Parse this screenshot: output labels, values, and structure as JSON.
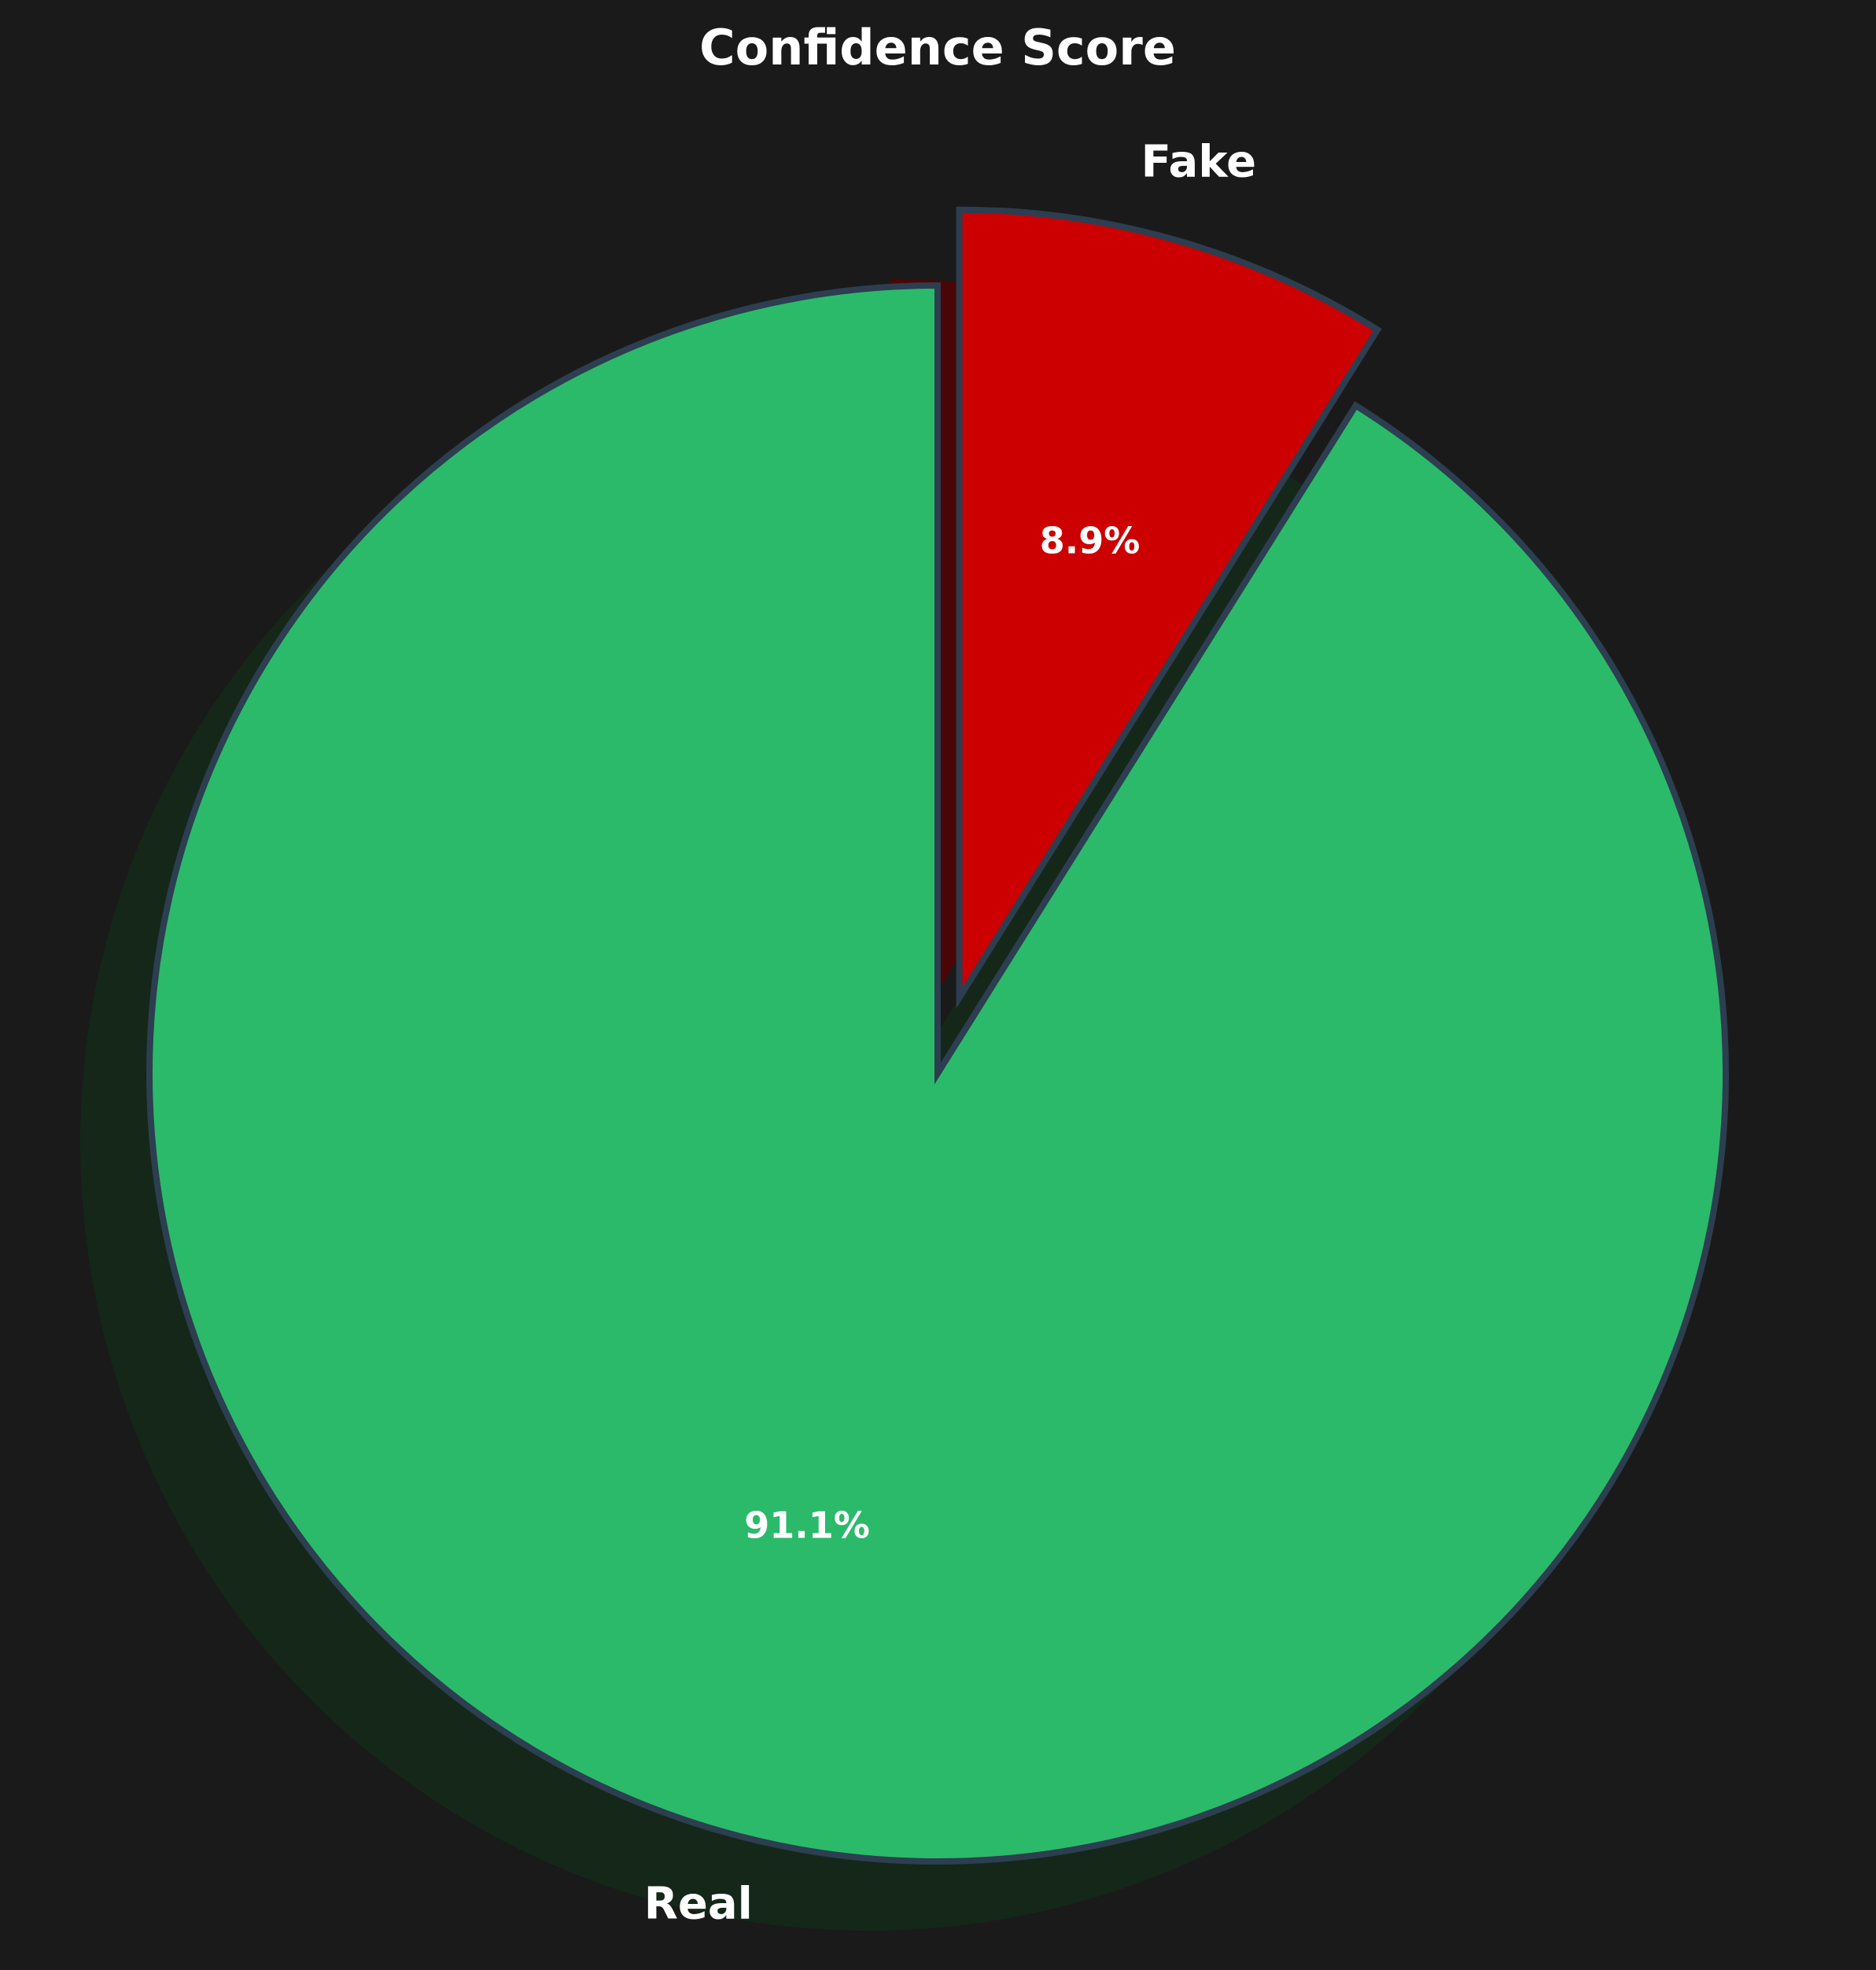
{
  "chart_data": {
    "type": "pie",
    "title": "Confidence Score",
    "start_angle": "top",
    "direction": "clockwise",
    "shadow": true,
    "exploded": [
      "Fake"
    ],
    "slices": [
      {
        "label": "Fake",
        "value": 8.9,
        "pct_label": "8.9%",
        "color": "#cc0000"
      },
      {
        "label": "Real",
        "value": 91.1,
        "pct_label": "91.1%",
        "color": "#2bba6a"
      }
    ],
    "edge_color": "#2c3e50",
    "background": "#1a1a1a",
    "shadow_color": "#142719"
  }
}
